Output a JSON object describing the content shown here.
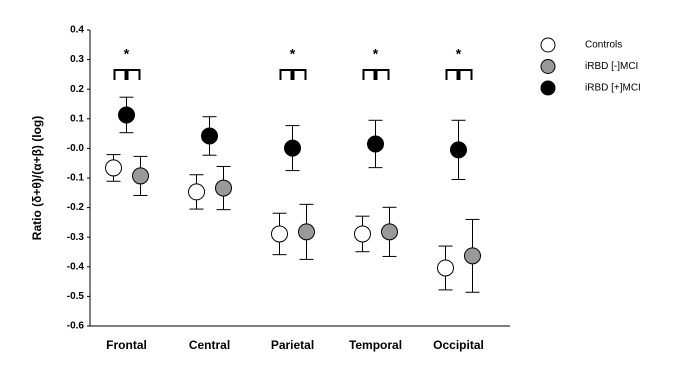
{
  "chart_data": {
    "type": "dot-errorbar",
    "y_label": "Ratio (δ+θ)/(α+β) (log)",
    "categories": [
      "Frontal",
      "Central",
      "Parietal",
      "Temporal",
      "Occipital"
    ],
    "series": [
      {
        "name": "Controls",
        "color": "#ffffff",
        "values": [
          -0.066,
          -0.147,
          -0.289,
          -0.289,
          -0.404
        ],
        "errors": [
          0.045,
          0.058,
          0.07,
          0.06,
          0.074
        ]
      },
      {
        "name": "iRBD [-]MCI",
        "color": "#999999",
        "values": [
          -0.093,
          -0.134,
          -0.282,
          -0.282,
          -0.363
        ],
        "errors": [
          0.066,
          0.073,
          0.093,
          0.083,
          0.123
        ]
      },
      {
        "name": "iRBD [+]MCI",
        "color": "#000000",
        "values": [
          0.113,
          0.042,
          0.001,
          0.015,
          -0.005
        ],
        "errors": [
          0.06,
          0.065,
          0.076,
          0.08,
          0.1
        ]
      }
    ],
    "significance": [
      "*",
      null,
      "*",
      "*",
      "*"
    ],
    "ylim": [
      -0.6,
      0.4
    ],
    "yticks": [
      -0.6,
      -0.5,
      -0.4,
      -0.3,
      -0.2,
      -0.1,
      {
        "value": 0,
        "label": "-0.0"
      },
      0.1,
      0.2,
      0.3,
      0.4
    ],
    "grid": false
  }
}
